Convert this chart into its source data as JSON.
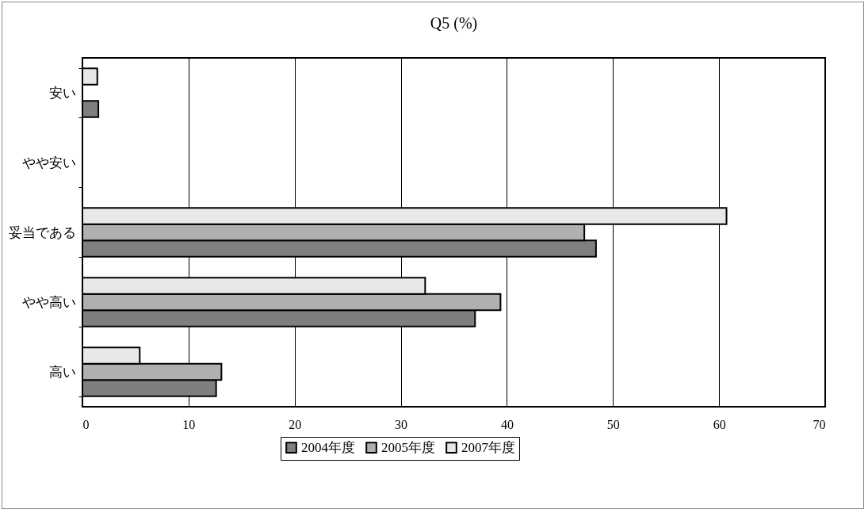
{
  "chart_data": {
    "type": "bar",
    "orientation": "horizontal",
    "title": "Q5 (%)",
    "categories": [
      "安い",
      "やや安い",
      "妥当である",
      "やや高い",
      "高い"
    ],
    "series": [
      {
        "name": "2004年度",
        "color": "#7f7f7f",
        "values": [
          1.5,
          null,
          48.4,
          37.0,
          12.6
        ]
      },
      {
        "name": "2005年度",
        "color": "#b0b0b0",
        "values": [
          null,
          null,
          47.3,
          39.4,
          13.1
        ]
      },
      {
        "name": "2007年度",
        "color": "#e8e8e8",
        "values": [
          1.4,
          null,
          60.7,
          32.3,
          5.4
        ]
      }
    ],
    "xlim": [
      0,
      70
    ],
    "xticks": [
      0,
      10,
      20,
      30,
      40,
      50,
      60,
      70
    ],
    "grid": "x",
    "legend": "bottom"
  }
}
